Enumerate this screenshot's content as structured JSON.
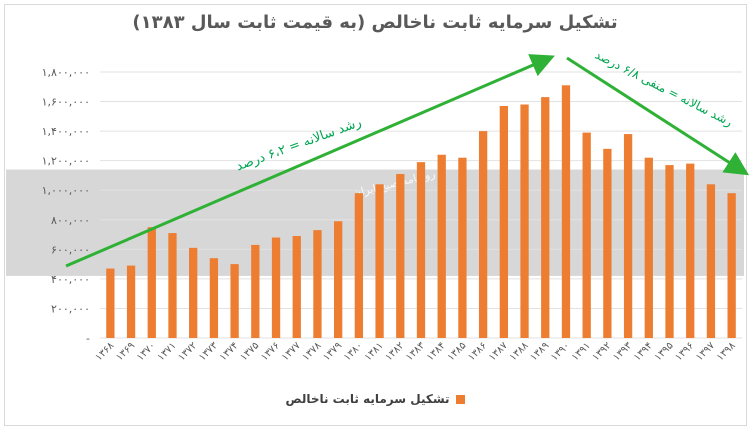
{
  "chart_data": {
    "type": "bar",
    "title": "تشکیل سرمایه ثابت ناخالص (به قیمت ثابت سال ۱۳۸۳)",
    "categories": [
      "۱۳۶۸",
      "۱۳۶۹",
      "۱۳۷۰",
      "۱۳۷۱",
      "۱۳۷۲",
      "۱۳۷۳",
      "۱۳۷۴",
      "۱۳۷۵",
      "۱۳۷۶",
      "۱۳۷۷",
      "۱۳۷۸",
      "۱۳۷۹",
      "۱۳۸۰",
      "۱۳۸۱",
      "۱۳۸۲",
      "۱۳۸۳",
      "۱۳۸۴",
      "۱۳۸۵",
      "۱۳۸۶",
      "۱۳۸۷",
      "۱۳۸۸",
      "۱۳۸۹",
      "۱۳۹۰",
      "۱۳۹۱",
      "۱۳۹۲",
      "۱۳۹۳",
      "۱۳۹۴",
      "۱۳۹۵",
      "۱۳۹۶",
      "۱۳۹۷",
      "۱۳۹۸"
    ],
    "series": [
      {
        "name": "تشکیل سرمایه ثابت ناخالص",
        "color": "#ed7d31",
        "values": [
          470000,
          490000,
          750000,
          710000,
          610000,
          540000,
          500000,
          630000,
          680000,
          690000,
          730000,
          790000,
          980000,
          1040000,
          1110000,
          1190000,
          1240000,
          1220000,
          1400000,
          1570000,
          1580000,
          1630000,
          1710000,
          1390000,
          1280000,
          1380000,
          1220000,
          1170000,
          1180000,
          1040000,
          980000
        ]
      }
    ],
    "ylim": [
      0,
      1800000
    ],
    "yticks": [
      "-",
      "۲۰۰,۰۰۰",
      "۴۰۰,۰۰۰",
      "۶۰۰,۰۰۰",
      "۸۰۰,۰۰۰",
      "۱,۰۰۰,۰۰۰",
      "۱,۲۰۰,۰۰۰",
      "۱,۴۰۰,۰۰۰",
      "۱,۶۰۰,۰۰۰",
      "۱,۸۰۰,۰۰۰"
    ],
    "grid": true,
    "legend_position": "bottom",
    "annotations": [
      {
        "text": "رشد سالانه = ۶،۲ درصد",
        "color": "#00a651"
      },
      {
        "text": "رشد سالانه = منفی ۶/۸ درصد",
        "color": "#00a651"
      }
    ],
    "trend_lines": [
      {
        "from": "۱۳۶۸",
        "to": "۱۳۹۰",
        "color": "#2eb135"
      },
      {
        "from": "۱۳۹۰",
        "to": "۱۳۹۸",
        "color": "#2eb135"
      }
    ],
    "watermark": "روزنامه صبح ایران"
  }
}
